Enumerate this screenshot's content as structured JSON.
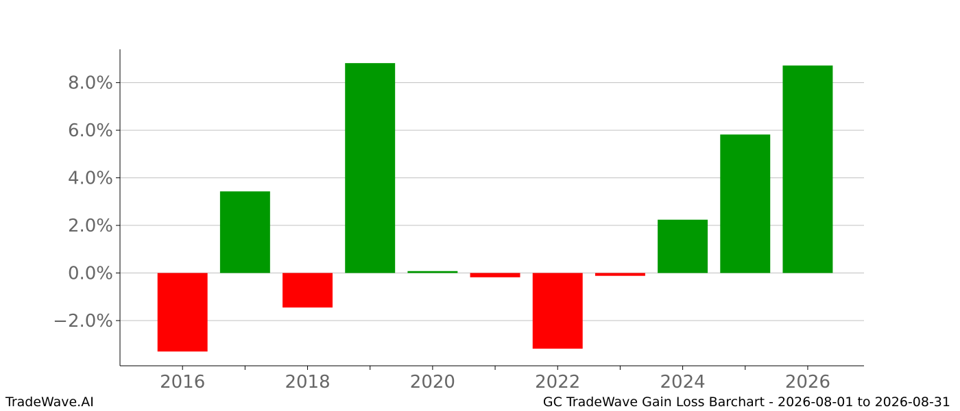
{
  "footer": {
    "brand": "TradeWave.AI",
    "caption": "GC TradeWave Gain Loss Barchart - 2026-08-01 to 2026-08-31"
  },
  "colors": {
    "gain": "#009900",
    "loss": "#ff0000",
    "grid": "#c0c0c0",
    "axis": "#000000",
    "tick_text": "#666666"
  },
  "chart_data": {
    "type": "bar",
    "title": "",
    "xlabel": "",
    "ylabel": "",
    "categories": [
      "2016",
      "2017",
      "2018",
      "2019",
      "2020",
      "2021",
      "2022",
      "2023",
      "2024",
      "2025",
      "2026"
    ],
    "values": [
      -3.3,
      3.43,
      -1.45,
      8.82,
      0.08,
      -0.18,
      -3.18,
      -0.12,
      2.24,
      5.82,
      8.72
    ],
    "value_unit": "%",
    "xlim": [
      2015.0,
      2026.9
    ],
    "ylim": [
      -3.9,
      9.4
    ],
    "y_ticks": [
      -2.0,
      0.0,
      2.0,
      4.0,
      6.0,
      8.0
    ],
    "y_tick_labels": [
      "−2.0%",
      "0.0%",
      "2.0%",
      "4.0%",
      "6.0%",
      "8.0%"
    ],
    "x_ticks": [
      2016,
      2017,
      2018,
      2019,
      2020,
      2021,
      2022,
      2023,
      2024,
      2025,
      2026
    ],
    "x_tick_labels": [
      "2016",
      "",
      "2018",
      "",
      "2020",
      "",
      "2022",
      "",
      "2024",
      "",
      "2026"
    ],
    "grid": true,
    "legend": "none"
  }
}
